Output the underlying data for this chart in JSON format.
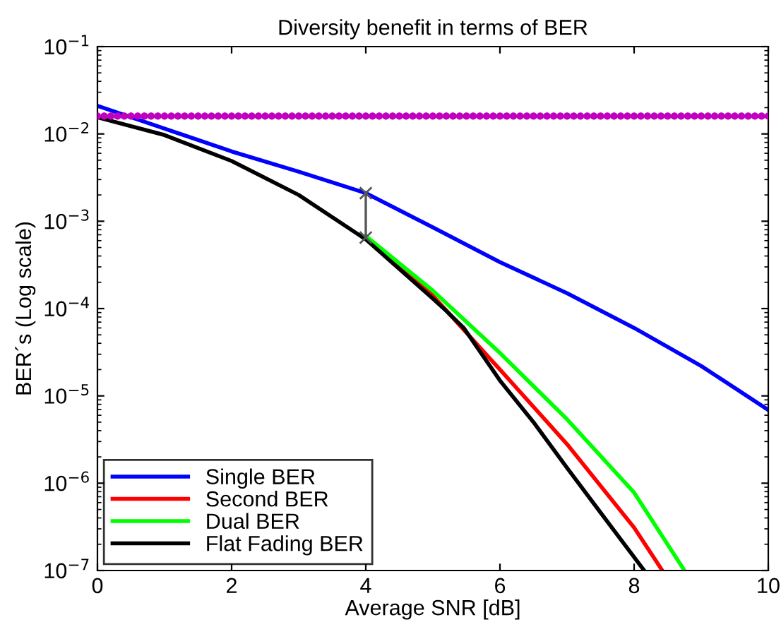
{
  "chart_data": {
    "type": "line",
    "title": "Diversity benefit in terms of BER",
    "xlabel": "Average SNR [dB]",
    "ylabel": "BER´s (Log scale)",
    "log": "y",
    "grid": false,
    "legend": "bottom left",
    "xlim": [
      0,
      10
    ],
    "xticks": [
      0,
      2,
      4,
      6,
      8,
      10
    ],
    "ylim": [
      1e-07,
      0.1
    ],
    "yticks": [
      {
        "value": 1e-07,
        "label": "10$^{−7}$"
      },
      {
        "value": 1e-06,
        "label": "10$^{−6}$"
      },
      {
        "value": 1e-05,
        "label": "10$^{−5}$"
      },
      {
        "value": 0.0001,
        "label": "10$^{−4}$"
      },
      {
        "value": 0.001,
        "label": "10$^{−3}$"
      },
      {
        "value": 0.01,
        "label": "10$^{−2}$"
      },
      {
        "value": 0.1,
        "label": "10$^{−1}$"
      }
    ],
    "series": [
      {
        "name": "Single BER",
        "color": "#0000ff",
        "marker": "none",
        "line_style": "solid",
        "x": [
          0,
          1,
          2,
          3,
          4,
          5,
          6,
          7,
          8,
          9,
          10
        ],
        "values": [
          0.021,
          0.0115,
          0.0063,
          0.0037,
          0.0021,
          0.00085,
          0.00034,
          0.00015,
          6e-05,
          2.2e-05,
          6.9e-06
        ]
      },
      {
        "name": "Second BER",
        "color": "#ff0000",
        "marker": "none",
        "line_style": "solid",
        "x": [
          4,
          5,
          6,
          7,
          8,
          8.42
        ],
        "values": [
          0.00065,
          0.00014,
          2e-05,
          2.8e-06,
          3.1e-07,
          1e-07
        ]
      },
      {
        "name": "Dual BER",
        "color": "#00ff00",
        "marker": "none",
        "line_style": "solid",
        "x": [
          4,
          5,
          6,
          7,
          8,
          8.75
        ],
        "values": [
          0.00068,
          0.00016,
          3.1e-05,
          5.4e-06,
          7.8e-07,
          1e-07
        ]
      },
      {
        "name": "Flat Fading BER",
        "color": "#000000",
        "marker": "none",
        "line_style": "solid",
        "x": [
          0,
          1,
          2,
          3,
          4,
          5,
          5.2,
          5.46,
          6,
          6.5,
          7,
          7.5,
          8.15
        ],
        "values": [
          0.0155,
          0.0097,
          0.0049,
          0.002,
          0.00062,
          0.00013,
          9.4e-05,
          6e-05,
          1.5e-05,
          5e-06,
          1.5e-06,
          4.6e-07,
          1e-07
        ]
      },
      {
        "type": "scatter",
        "color": "#c000c0",
        "marker": "circle",
        "x": [
          0,
          0.1,
          0.2,
          0.3,
          0.4,
          0.5,
          0.6,
          0.7,
          0.8,
          0.9,
          1,
          1.1,
          1.2,
          1.3,
          1.4,
          1.5,
          1.6,
          1.7,
          1.8,
          1.9,
          2,
          2.1,
          2.2,
          2.3,
          2.4,
          2.5,
          2.6,
          2.7,
          2.8,
          2.9,
          3,
          3.1,
          3.2,
          3.3,
          3.4,
          3.5,
          3.6,
          3.7,
          3.8,
          3.9,
          4,
          4.1,
          4.2,
          4.3,
          4.4,
          4.5,
          4.6,
          4.7,
          4.8,
          4.9,
          5,
          5.1,
          5.2,
          5.3,
          5.4,
          5.5,
          5.6,
          5.7,
          5.8,
          5.9,
          6,
          6.1,
          6.2,
          6.3,
          6.4,
          6.5,
          6.6,
          6.7,
          6.8,
          6.9,
          7,
          7.1,
          7.2,
          7.3,
          7.4,
          7.5,
          7.6,
          7.7,
          7.8,
          7.9,
          8,
          8.1,
          8.2,
          8.3,
          8.4,
          8.5,
          8.6,
          8.7,
          8.8,
          8.9,
          9,
          9.1,
          9.2,
          9.3,
          9.4,
          9.5,
          9.6,
          9.7,
          9.8,
          9.9,
          10
        ],
        "values": [
          0.016,
          0.016,
          0.016,
          0.016,
          0.016,
          0.016,
          0.016,
          0.016,
          0.016,
          0.016,
          0.016,
          0.016,
          0.016,
          0.016,
          0.016,
          0.016,
          0.016,
          0.016,
          0.016,
          0.016,
          0.016,
          0.016,
          0.016,
          0.016,
          0.016,
          0.016,
          0.016,
          0.016,
          0.016,
          0.016,
          0.016,
          0.016,
          0.016,
          0.016,
          0.016,
          0.016,
          0.016,
          0.016,
          0.016,
          0.016,
          0.016,
          0.016,
          0.016,
          0.016,
          0.016,
          0.016,
          0.016,
          0.016,
          0.016,
          0.016,
          0.016,
          0.016,
          0.016,
          0.016,
          0.016,
          0.016,
          0.016,
          0.016,
          0.016,
          0.016,
          0.016,
          0.016,
          0.016,
          0.016,
          0.016,
          0.016,
          0.016,
          0.016,
          0.016,
          0.016,
          0.016,
          0.016,
          0.016,
          0.016,
          0.016,
          0.016,
          0.016,
          0.016,
          0.016,
          0.016,
          0.016,
          0.016,
          0.016,
          0.016,
          0.016,
          0.016,
          0.016,
          0.016,
          0.016,
          0.016,
          0.016,
          0.016,
          0.016,
          0.016,
          0.016,
          0.016,
          0.016,
          0.016,
          0.016,
          0.016,
          0.016
        ]
      },
      {
        "color": "#555555",
        "marker": "cross",
        "line_style": "solid",
        "x": [
          4,
          4
        ],
        "values": [
          0.0021,
          0.00065
        ]
      }
    ]
  }
}
